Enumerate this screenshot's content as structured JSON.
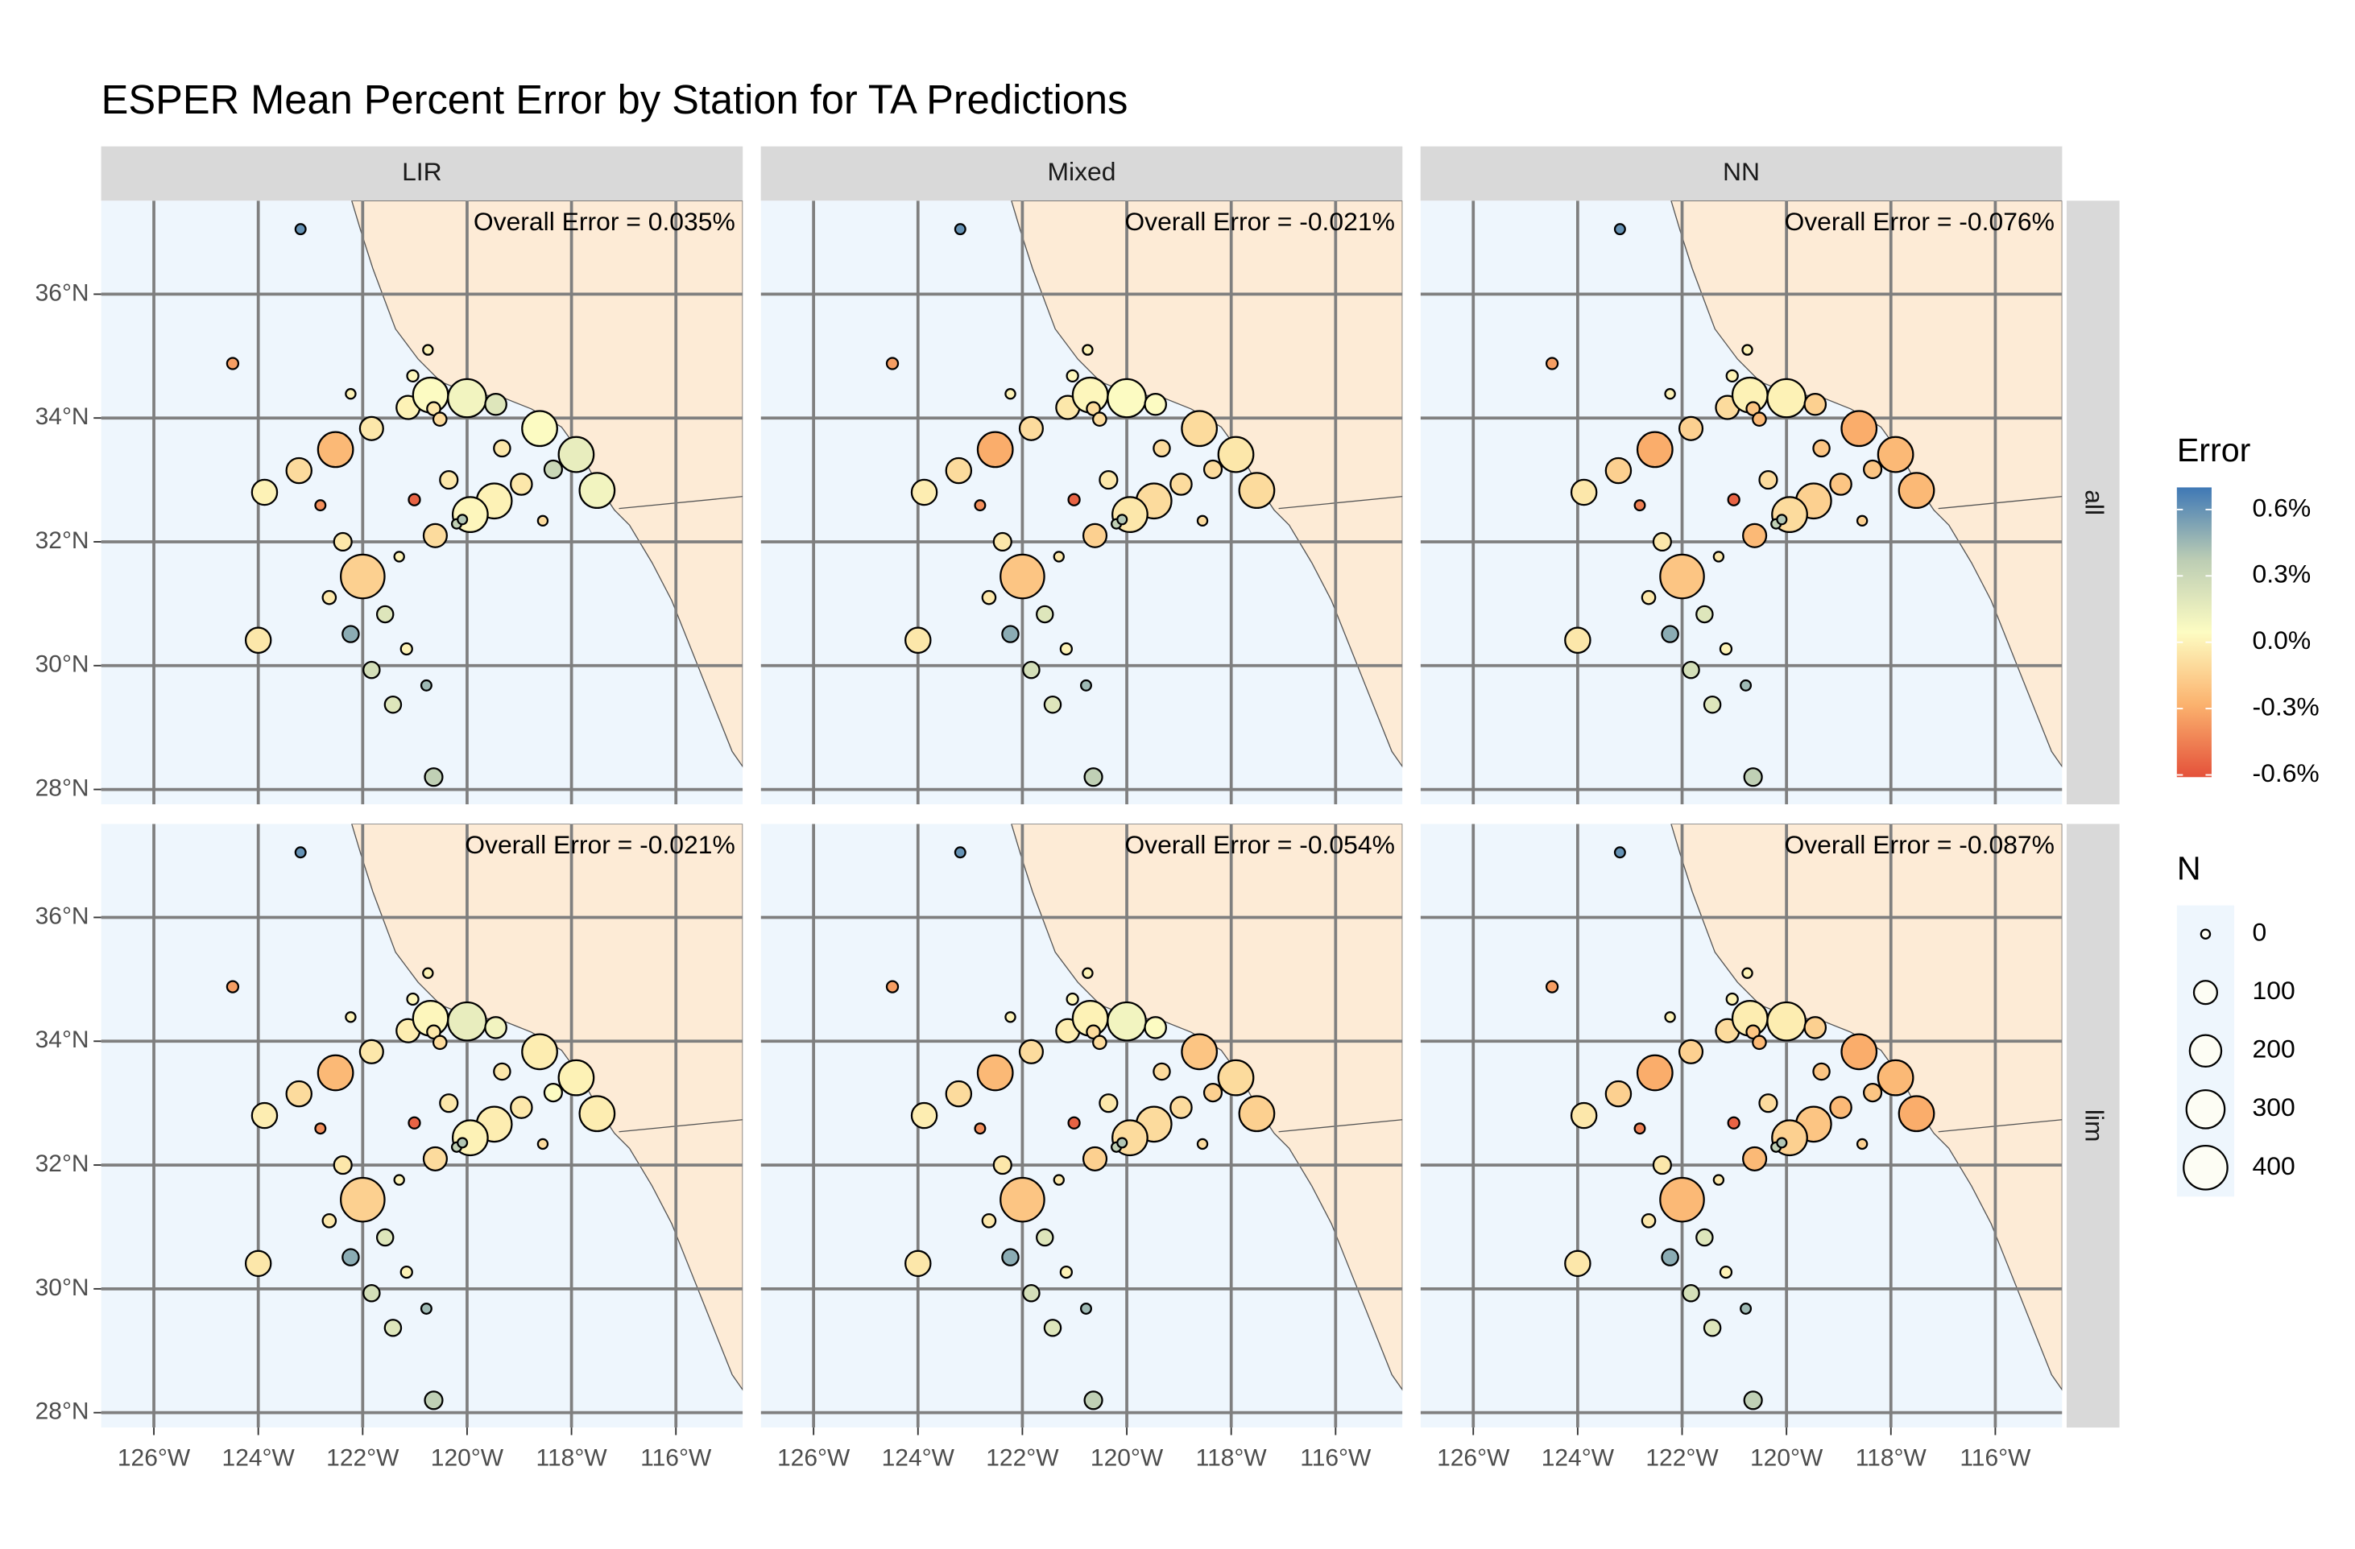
{
  "chart_data": {
    "type": "scatter",
    "title": "ESPER Mean Percent Error by Station for TA Predictions",
    "facet_cols": [
      "LIR",
      "Mixed",
      "NN"
    ],
    "facet_rows": [
      "all",
      "lim"
    ],
    "xlim": [
      -127.01,
      -114.72
    ],
    "ylim": [
      27.76,
      37.51
    ],
    "xticks": [
      {
        "value": -126,
        "label": "126°W"
      },
      {
        "value": -124,
        "label": "124°W"
      },
      {
        "value": -122,
        "label": "122°W"
      },
      {
        "value": -120,
        "label": "120°W"
      },
      {
        "value": -118,
        "label": "118°W"
      },
      {
        "value": -116,
        "label": "116°W"
      }
    ],
    "yticks": [
      {
        "value": 28,
        "label": "28°N"
      },
      {
        "value": 30,
        "label": "30°N"
      },
      {
        "value": 32,
        "label": "32°N"
      },
      {
        "value": 34,
        "label": "34°N"
      },
      {
        "value": 36,
        "label": "36°N"
      }
    ],
    "grid": true,
    "stations": {
      "x": [
        -123.19,
        -124.49,
        -122.23,
        -121.04,
        -120.75,
        -121.13,
        -120.7,
        -120.64,
        -120.52,
        -120.0,
        -119.45,
        -119.33,
        -121.83,
        -122.52,
        -123.22,
        -123.88,
        -122.81,
        -121.01,
        -120.35,
        -118.61,
        -117.91,
        -118.35,
        -117.51,
        -118.96,
        -119.48,
        -119.94,
        -120.2,
        -120.09,
        -120.61,
        -118.55,
        -122.38,
        -121.3,
        -122.0,
        -122.64,
        -121.57,
        -124.0,
        -122.23,
        -121.16,
        -121.83,
        -120.78,
        -121.42,
        -120.64
      ],
      "y": [
        37.05,
        34.88,
        34.39,
        34.68,
        35.1,
        34.17,
        34.37,
        34.15,
        33.98,
        34.32,
        34.22,
        33.51,
        33.83,
        33.49,
        33.15,
        32.8,
        32.59,
        32.68,
        33.0,
        33.83,
        33.41,
        33.17,
        32.83,
        32.93,
        32.66,
        32.44,
        32.29,
        32.36,
        32.1,
        32.34,
        32.0,
        31.76,
        31.44,
        31.1,
        30.83,
        30.41,
        30.51,
        30.27,
        29.93,
        29.68,
        29.37,
        28.2
      ],
      "n": [
        5,
        10,
        3,
        10,
        3,
        100,
        250,
        20,
        20,
        300,
        80,
        40,
        100,
        250,
        120,
        120,
        5,
        10,
        50,
        250,
        250,
        50,
        250,
        80,
        250,
        250,
        2,
        2,
        100,
        3,
        50,
        3,
        400,
        20,
        40,
        120,
        40,
        10,
        40,
        5,
        40,
        50
      ]
    },
    "panels": [
      {
        "annotation": "Overall Error = 0.035%",
        "values": [
          0.6,
          -0.35,
          0,
          0.02,
          0,
          0,
          0.05,
          -0.05,
          -0.1,
          0.1,
          0.2,
          -0.05,
          -0.05,
          -0.25,
          -0.1,
          0,
          -0.4,
          -0.55,
          -0.05,
          0.05,
          0.15,
          0.3,
          0.1,
          -0.05,
          0,
          0.02,
          0.35,
          0.4,
          -0.1,
          -0.1,
          -0.05,
          0,
          -0.15,
          -0.05,
          0.2,
          -0.05,
          0.5,
          0,
          0.25,
          0.45,
          0.2,
          0.35
        ]
      },
      {
        "annotation": "Overall Error = -0.021%",
        "values": [
          0.6,
          -0.35,
          0,
          0.02,
          0,
          -0.05,
          0.02,
          -0.1,
          -0.1,
          0.05,
          0.05,
          -0.1,
          -0.1,
          -0.3,
          -0.1,
          -0.02,
          -0.4,
          -0.55,
          -0.05,
          -0.1,
          -0.05,
          -0.1,
          -0.1,
          -0.1,
          -0.1,
          -0.05,
          0.35,
          0.4,
          -0.15,
          -0.1,
          -0.05,
          -0.05,
          -0.2,
          -0.05,
          0.2,
          -0.05,
          0.5,
          0,
          0.25,
          0.45,
          0.2,
          0.35
        ]
      },
      {
        "annotation": "Overall Error = -0.076%",
        "values": [
          0.6,
          -0.35,
          0,
          0,
          0,
          -0.1,
          0,
          -0.2,
          -0.25,
          0,
          -0.15,
          -0.2,
          -0.15,
          -0.3,
          -0.15,
          -0.05,
          -0.45,
          -0.55,
          -0.1,
          -0.3,
          -0.25,
          -0.2,
          -0.25,
          -0.2,
          -0.15,
          -0.1,
          0.35,
          0.4,
          -0.25,
          -0.15,
          -0.05,
          -0.05,
          -0.2,
          -0.05,
          0.2,
          -0.05,
          0.5,
          0,
          0.25,
          0.45,
          0.2,
          0.35
        ]
      },
      {
        "annotation": "Overall Error = -0.021%",
        "values": [
          0.6,
          -0.35,
          0,
          0.02,
          0,
          -0.02,
          0.02,
          -0.05,
          -0.1,
          0.15,
          0.1,
          -0.05,
          -0.05,
          -0.25,
          -0.1,
          -0.02,
          -0.4,
          -0.55,
          -0.05,
          -0.02,
          0,
          0.05,
          -0.02,
          -0.05,
          -0.02,
          0,
          0.35,
          0.4,
          -0.1,
          -0.1,
          -0.05,
          0,
          -0.15,
          -0.05,
          0.2,
          -0.05,
          0.5,
          0,
          0.25,
          0.45,
          0.2,
          0.35
        ]
      },
      {
        "annotation": "Overall Error = -0.054%",
        "values": [
          0.6,
          -0.35,
          0,
          0.02,
          0,
          -0.02,
          0,
          -0.1,
          -0.1,
          0.1,
          0.05,
          -0.1,
          -0.1,
          -0.25,
          -0.1,
          -0.02,
          -0.4,
          -0.55,
          -0.05,
          -0.2,
          -0.1,
          -0.15,
          -0.15,
          -0.1,
          -0.1,
          -0.1,
          0.35,
          0.4,
          -0.15,
          -0.1,
          -0.05,
          -0.05,
          -0.2,
          -0.05,
          0.2,
          -0.05,
          0.5,
          0,
          0.25,
          0.45,
          0.2,
          0.35
        ]
      },
      {
        "annotation": "Overall Error = -0.087%",
        "values": [
          0.6,
          -0.35,
          0,
          0,
          0,
          -0.1,
          -0.02,
          -0.2,
          -0.25,
          -0.02,
          -0.15,
          -0.2,
          -0.15,
          -0.3,
          -0.15,
          -0.05,
          -0.45,
          -0.55,
          -0.1,
          -0.3,
          -0.25,
          -0.2,
          -0.3,
          -0.25,
          -0.2,
          -0.15,
          0.35,
          0.4,
          -0.25,
          -0.15,
          -0.05,
          -0.05,
          -0.25,
          -0.05,
          0.2,
          -0.05,
          0.5,
          0,
          0.25,
          0.45,
          0.2,
          0.35
        ]
      }
    ],
    "color_legend": {
      "title": "Error",
      "lim": [
        -0.61,
        0.7
      ],
      "palette": [
        "#e4513a",
        "#fbb26e",
        "#fdfcc2",
        "#bccdb4",
        "#3f78b5"
      ],
      "ticks": [
        {
          "value": 0.6,
          "label": "0.6%"
        },
        {
          "value": 0.3,
          "label": "0.3%"
        },
        {
          "value": 0.0,
          "label": "0.0%"
        },
        {
          "value": -0.3,
          "label": "-0.3%"
        },
        {
          "value": -0.6,
          "label": "-0.6%"
        }
      ]
    },
    "size_legend": {
      "title": "N",
      "ticks": [
        0,
        100,
        200,
        300,
        400
      ]
    }
  }
}
